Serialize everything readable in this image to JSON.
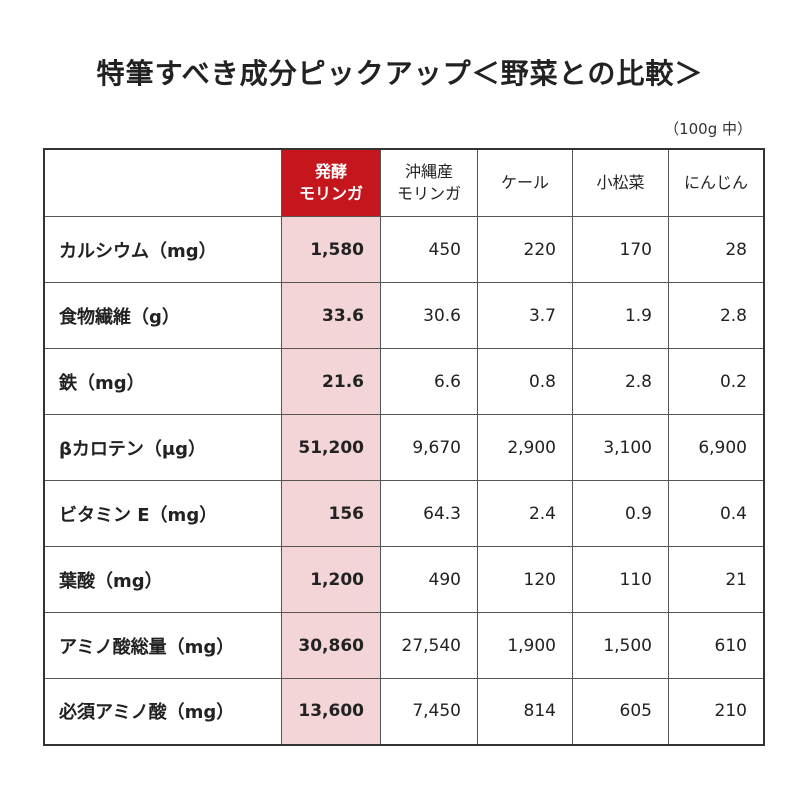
{
  "title": "特筆すべき成分ピックアップ＜野菜との比較＞",
  "note": "（100g 中）",
  "table": {
    "columns": [
      [
        "発酵",
        "モリンガ"
      ],
      [
        "沖縄産",
        "モリンガ"
      ],
      [
        "ケール"
      ],
      [
        "小松菜"
      ],
      [
        "にんじん"
      ]
    ],
    "rows": [
      [
        "カルシウム（mg）",
        "1,580",
        "450",
        "220",
        "170",
        "28"
      ],
      [
        "食物繊維（g）",
        "33.6",
        "30.6",
        "3.7",
        "1.9",
        "2.8"
      ],
      [
        "鉄（mg）",
        "21.6",
        "6.6",
        "0.8",
        "2.8",
        "0.2"
      ],
      [
        "βカロテン（μg）",
        "51,200",
        "9,670",
        "2,900",
        "3,100",
        "6,900"
      ],
      [
        "ビタミン E（mg）",
        "156",
        "64.3",
        "2.4",
        "0.9",
        "0.4"
      ],
      [
        "葉酸（mg）",
        "1,200",
        "490",
        "120",
        "110",
        "21"
      ],
      [
        "アミノ酸総量（mg）",
        "30,860",
        "27,540",
        "1,900",
        "1,500",
        "610"
      ],
      [
        "必須アミノ酸（mg）",
        "13,600",
        "7,450",
        "814",
        "605",
        "210"
      ]
    ]
  }
}
